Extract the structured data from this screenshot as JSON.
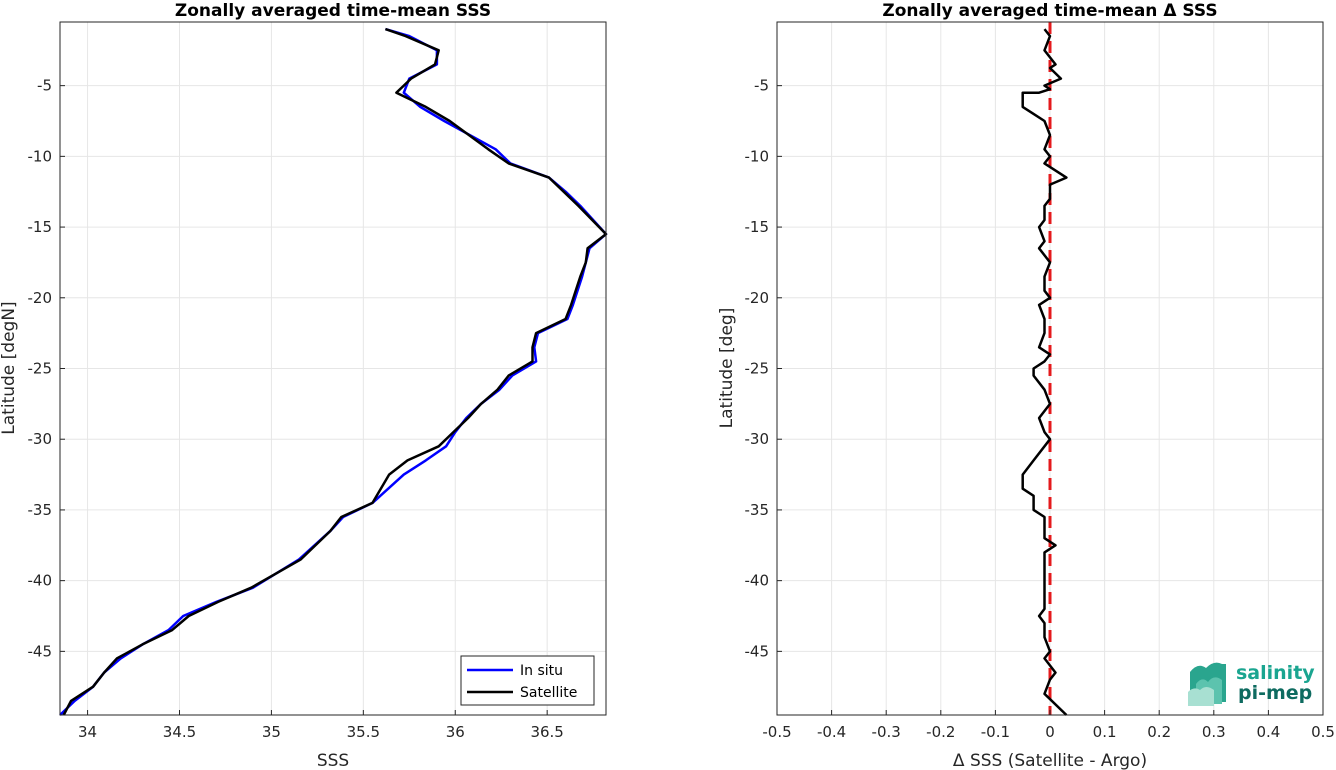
{
  "chart_data": [
    {
      "type": "line",
      "title": "Zonally averaged time-mean SSS",
      "xlabel": "SSS",
      "ylabel": "Latitude [degN]",
      "xlim": [
        33.85,
        36.82
      ],
      "ylim": [
        -49.5,
        -0.5
      ],
      "xticks": [
        34,
        34.5,
        35,
        35.5,
        36,
        36.5
      ],
      "xtick_labels": [
        "34",
        "34.5",
        "35",
        "35.5",
        "36",
        "36.5"
      ],
      "yticks": [
        -5,
        -10,
        -15,
        -20,
        -25,
        -30,
        -35,
        -40,
        -45
      ],
      "ytick_labels": [
        "-5",
        "-10",
        "-15",
        "-20",
        "-25",
        "-30",
        "-35",
        "-40",
        "-45"
      ],
      "grid": true,
      "legend_position": "bottom-right",
      "series": [
        {
          "name": "In situ",
          "color": "#0000ff",
          "x": [
            35.62,
            35.75,
            35.9,
            35.9,
            35.75,
            35.72,
            35.81,
            35.94,
            36.22,
            36.3,
            36.51,
            36.6,
            36.68,
            36.82,
            36.73,
            36.71,
            36.69,
            36.64,
            36.61,
            36.45,
            36.43,
            36.44,
            36.31,
            36.24,
            36.14,
            36.06,
            36.0,
            35.95,
            35.84,
            35.72,
            35.55,
            35.39,
            35.32,
            35.15,
            34.9,
            34.7,
            34.52,
            34.44,
            34.3,
            34.18,
            34.09,
            34.03,
            33.93,
            33.85
          ],
          "y": [
            -1.0,
            -1.5,
            -2.5,
            -3.5,
            -4.5,
            -5.5,
            -6.5,
            -7.5,
            -9.5,
            -10.5,
            -11.5,
            -12.5,
            -13.5,
            -15.5,
            -16.5,
            -17.5,
            -18.5,
            -20.5,
            -21.5,
            -22.5,
            -23.5,
            -24.5,
            -25.5,
            -26.5,
            -27.5,
            -28.5,
            -29.5,
            -30.5,
            -31.5,
            -32.5,
            -34.5,
            -35.5,
            -36.5,
            -38.5,
            -40.5,
            -41.5,
            -42.5,
            -43.5,
            -44.5,
            -45.5,
            -46.5,
            -47.5,
            -48.5,
            -49.5
          ]
        },
        {
          "name": "Satellite",
          "color": "#000000",
          "x": [
            35.62,
            35.73,
            35.91,
            35.89,
            35.76,
            35.68,
            35.84,
            35.97,
            36.18,
            36.29,
            36.51,
            36.59,
            36.67,
            36.82,
            36.72,
            36.71,
            36.68,
            36.63,
            36.6,
            36.44,
            36.42,
            36.42,
            36.29,
            36.23,
            36.14,
            36.07,
            35.99,
            35.91,
            35.74,
            35.64,
            35.55,
            35.38,
            35.32,
            35.16,
            34.89,
            34.71,
            34.55,
            34.46,
            34.3,
            34.16,
            34.09,
            34.03,
            33.91,
            33.87
          ],
          "y": [
            -1.0,
            -1.5,
            -2.5,
            -3.5,
            -4.5,
            -5.5,
            -6.5,
            -7.5,
            -9.5,
            -10.5,
            -11.5,
            -12.5,
            -13.5,
            -15.5,
            -16.5,
            -17.5,
            -18.5,
            -20.5,
            -21.5,
            -22.5,
            -23.5,
            -24.5,
            -25.5,
            -26.5,
            -27.5,
            -28.5,
            -29.5,
            -30.5,
            -31.5,
            -32.5,
            -34.5,
            -35.5,
            -36.5,
            -38.5,
            -40.5,
            -41.5,
            -42.5,
            -43.5,
            -44.5,
            -45.5,
            -46.5,
            -47.5,
            -48.5,
            -49.5
          ]
        }
      ]
    },
    {
      "type": "line",
      "title": "Zonally averaged time-mean Δ SSS",
      "xlabel": "Δ SSS (Satellite - Argo)",
      "ylabel": "Latitude [deg]",
      "xlim": [
        -0.5,
        0.5
      ],
      "ylim": [
        -49.5,
        -0.5
      ],
      "xticks": [
        -0.5,
        -0.4,
        -0.3,
        -0.2,
        -0.1,
        0,
        0.1,
        0.2,
        0.3,
        0.4,
        0.5
      ],
      "xtick_labels": [
        "-0.5",
        "-0.4",
        "-0.3",
        "-0.2",
        "-0.1",
        "0",
        "0.1",
        "0.2",
        "0.3",
        "0.4",
        "0.5"
      ],
      "yticks": [
        -5,
        -10,
        -15,
        -20,
        -25,
        -30,
        -35,
        -40,
        -45
      ],
      "ytick_labels": [
        "-5",
        "-10",
        "-15",
        "-20",
        "-25",
        "-30",
        "-35",
        "-40",
        "-45"
      ],
      "grid": true,
      "zero_line": {
        "x": 0,
        "color": "#e41a1c",
        "style": "dashed"
      },
      "series": [
        {
          "color": "#000000",
          "x": [
            -0.01,
            0.0,
            -0.01,
            0.0,
            0.01,
            0.0,
            0.02,
            -0.01,
            0.0,
            -0.02,
            -0.05,
            -0.05,
            -0.03,
            -0.01,
            0.0,
            -0.01,
            0.0,
            -0.01,
            0.03,
            0.0,
            0.0,
            -0.01,
            -0.01,
            -0.02,
            -0.01,
            -0.02,
            0.0,
            -0.01,
            -0.01,
            0.0,
            -0.02,
            -0.01,
            -0.01,
            -0.02,
            0.0,
            -0.01,
            -0.03,
            -0.03,
            -0.01,
            0.0,
            -0.02,
            -0.01,
            0.0,
            -0.03,
            -0.05,
            -0.05,
            -0.03,
            -0.03,
            -0.01,
            -0.01,
            0.01,
            -0.01,
            -0.01,
            -0.01,
            -0.01,
            -0.01,
            -0.02,
            -0.01,
            -0.01,
            0.0,
            -0.01,
            0.01,
            0.0,
            -0.01,
            0.03
          ],
          "y": [
            -1.0,
            -1.5,
            -2.5,
            -3.0,
            -3.5,
            -3.75,
            -4.5,
            -5.0,
            -5.25,
            -5.5,
            -5.5,
            -6.5,
            -7.0,
            -7.5,
            -8.5,
            -9.5,
            -10.0,
            -10.5,
            -11.5,
            -12.0,
            -13.0,
            -13.5,
            -14.5,
            -15.0,
            -16.0,
            -16.5,
            -17.5,
            -18.5,
            -19.5,
            -20.0,
            -20.5,
            -21.5,
            -22.5,
            -23.5,
            -24.0,
            -24.5,
            -25.0,
            -25.5,
            -26.5,
            -27.5,
            -28.5,
            -29.5,
            -30.0,
            -31.5,
            -32.5,
            -33.5,
            -34.0,
            -35.0,
            -35.5,
            -37.0,
            -37.5,
            -38.0,
            -39.0,
            -40.0,
            -41.0,
            -42.0,
            -42.5,
            -43.0,
            -44.0,
            -45.0,
            -45.5,
            -46.5,
            -47.0,
            -48.0,
            -49.5
          ]
        }
      ]
    }
  ],
  "logo": {
    "line1": "salinity",
    "line2": "pi-mep"
  }
}
